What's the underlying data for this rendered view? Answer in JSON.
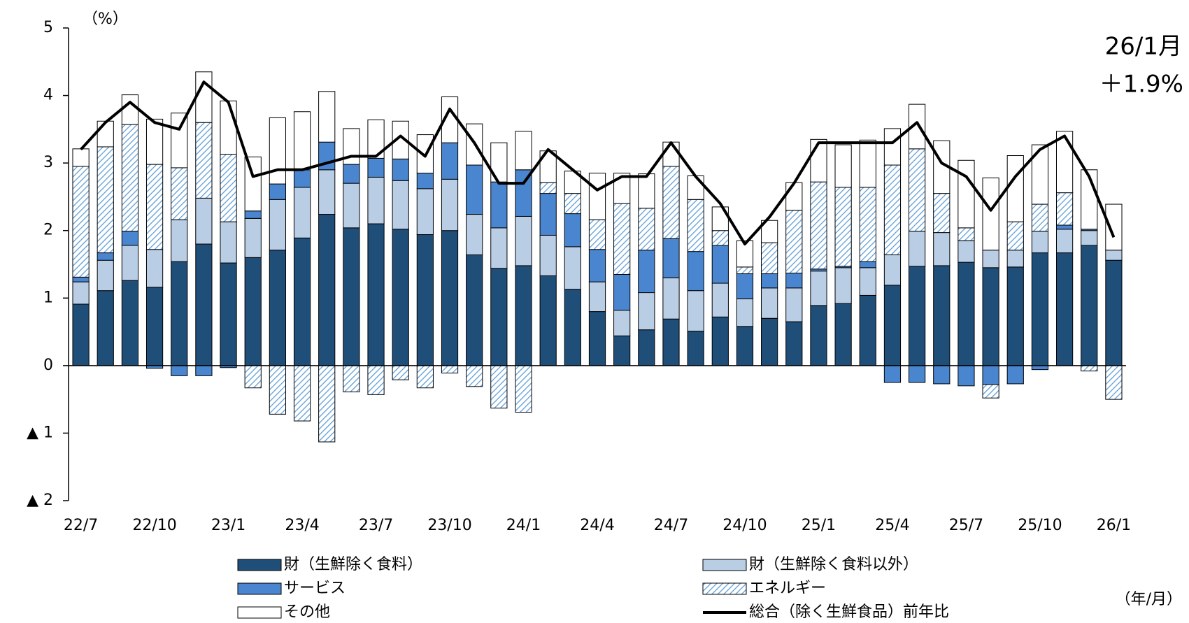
{
  "chart_data": {
    "type": "stacked_bar_line",
    "unit_label": "（%）",
    "x_unit_label": "（年/月）",
    "annotation": {
      "title": "26/1月",
      "value": "＋1.9%",
      "color": "#3b3bff"
    },
    "categories": [
      "22/7",
      null,
      null,
      "22/10",
      null,
      null,
      "23/1",
      null,
      null,
      "23/4",
      null,
      null,
      "23/7",
      null,
      null,
      "23/10",
      null,
      null,
      "24/1",
      null,
      null,
      "24/4",
      null,
      null,
      "24/7",
      null,
      null,
      "24/10",
      null,
      null,
      "25/1",
      null,
      null,
      "25/4",
      null,
      null,
      "25/7",
      null,
      null,
      "25/10",
      null,
      null,
      "26/1"
    ],
    "ylim": [
      -2,
      5
    ],
    "yticks": [
      5,
      4,
      3,
      2,
      1,
      0,
      {
        "value": -1,
        "label": "▲ 1"
      },
      {
        "value": -2,
        "label": "▲ 2"
      }
    ],
    "series": [
      {
        "name": "財（生鮮除く食料）",
        "type": "bar",
        "color": "#1f4e79",
        "values": [
          0.91,
          1.11,
          1.26,
          1.16,
          1.54,
          1.8,
          1.52,
          1.6,
          1.71,
          1.89,
          2.24,
          2.04,
          2.1,
          2.02,
          1.94,
          2.0,
          1.64,
          1.44,
          1.48,
          1.33,
          1.13,
          0.8,
          0.44,
          0.53,
          0.69,
          0.51,
          0.72,
          0.58,
          0.7,
          0.65,
          0.89,
          0.92,
          1.04,
          1.19,
          1.47,
          1.48,
          1.53,
          1.45,
          1.46,
          1.67,
          1.67,
          1.78,
          1.56
        ]
      },
      {
        "name": "財（生鮮除く食料以外）",
        "type": "bar",
        "color": "#b9cde5",
        "values": [
          0.33,
          0.45,
          0.52,
          0.56,
          0.62,
          0.68,
          0.61,
          0.58,
          0.75,
          0.75,
          0.66,
          0.66,
          0.69,
          0.72,
          0.68,
          0.76,
          0.6,
          0.6,
          0.73,
          0.6,
          0.63,
          0.44,
          0.38,
          0.55,
          0.61,
          0.6,
          0.5,
          0.41,
          0.45,
          0.5,
          0.51,
          0.53,
          0.41,
          0.45,
          0.52,
          0.49,
          0.32,
          0.26,
          0.25,
          0.32,
          0.35,
          0.22,
          0.15
        ]
      },
      {
        "name": "サービス",
        "type": "bar",
        "color": "#4a86d0",
        "values": [
          0.07,
          0.11,
          0.21,
          -0.04,
          -0.15,
          -0.15,
          -0.03,
          0.11,
          0.23,
          0.26,
          0.41,
          0.28,
          0.28,
          0.32,
          0.23,
          0.54,
          0.73,
          0.68,
          0.69,
          0.62,
          0.49,
          0.48,
          0.53,
          0.63,
          0.58,
          0.58,
          0.56,
          0.37,
          0.21,
          0.22,
          0.03,
          0.02,
          0.09,
          -0.25,
          -0.25,
          -0.27,
          -0.3,
          -0.28,
          -0.27,
          -0.06,
          0.06,
          0.02,
          0
        ]
      },
      {
        "name": "エネルギー",
        "type": "bar",
        "color": "#5b9bd5",
        "hatch": true,
        "values": [
          1.64,
          1.57,
          1.58,
          1.26,
          0.77,
          1.12,
          1.0,
          -0.33,
          -0.72,
          -0.82,
          -1.13,
          -0.39,
          -0.43,
          -0.21,
          -0.33,
          -0.11,
          -0.31,
          -0.63,
          -0.69,
          0.16,
          0.3,
          0.44,
          1.05,
          0.62,
          1.07,
          0.77,
          0.22,
          0.1,
          0.46,
          0.93,
          1.29,
          1.17,
          1.1,
          1.33,
          1.22,
          0.58,
          0.19,
          -0.2,
          0.42,
          0.4,
          0.48,
          -0.08,
          -0.5
        ]
      },
      {
        "name": "その他",
        "type": "bar",
        "color": "#ffffff",
        "values": [
          0.26,
          0.38,
          0.44,
          0.67,
          0.81,
          0.75,
          0.79,
          0.8,
          0.98,
          0.86,
          0.75,
          0.53,
          0.57,
          0.56,
          0.57,
          0.68,
          0.61,
          0.58,
          0.57,
          0.47,
          0.33,
          0.69,
          0.45,
          0.51,
          0.36,
          0.35,
          0.35,
          0.39,
          0.33,
          0.41,
          0.63,
          0.63,
          0.7,
          0.54,
          0.66,
          0.78,
          1.0,
          1.07,
          0.98,
          0.88,
          0.91,
          0.88,
          0.68
        ]
      },
      {
        "name": "総合（除く生鮮食品）前年比",
        "type": "line",
        "color": "#000000",
        "values": [
          3.2,
          3.6,
          3.9,
          3.6,
          3.5,
          4.2,
          3.9,
          2.8,
          2.9,
          2.9,
          3.0,
          3.1,
          3.1,
          3.4,
          3.1,
          3.8,
          3.3,
          2.7,
          2.7,
          3.2,
          2.9,
          2.6,
          2.8,
          2.8,
          3.3,
          2.8,
          2.4,
          1.8,
          2.2,
          2.7,
          3.3,
          3.3,
          3.3,
          3.3,
          3.6,
          3.0,
          2.8,
          2.3,
          2.8,
          3.2,
          3.4,
          2.8,
          1.9
        ]
      }
    ]
  }
}
